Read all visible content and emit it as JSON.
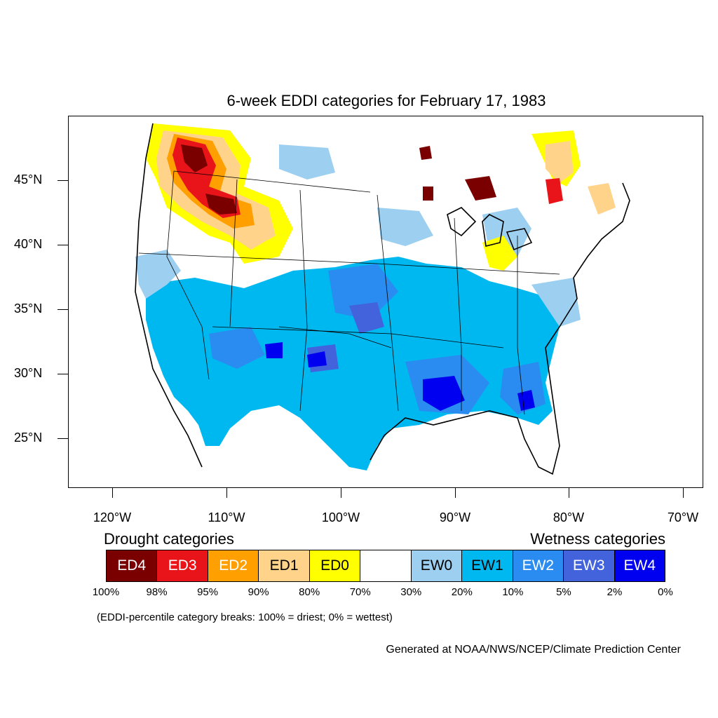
{
  "title": "6-week EDDI categories for February 17, 1983",
  "latitude_labels": [
    "45°N",
    "40°N",
    "35°N",
    "30°N",
    "25°N"
  ],
  "longitude_labels": [
    "120°W",
    "110°W",
    "100°W",
    "90°W",
    "80°W",
    "70°W"
  ],
  "legend": {
    "drought_heading": "Drought categories",
    "wetness_heading": "Wetness categories",
    "categories": [
      {
        "label": "ED4",
        "color": "#7a0000",
        "text_color": "#ffffff"
      },
      {
        "label": "ED3",
        "color": "#e8141a",
        "text_color": "#ffffff"
      },
      {
        "label": "ED2",
        "color": "#ffa000",
        "text_color": "#ffffff"
      },
      {
        "label": "ED1",
        "color": "#ffd38a",
        "text_color": "#000000"
      },
      {
        "label": "ED0",
        "color": "#ffff00",
        "text_color": "#000000"
      },
      {
        "label": "",
        "color": "#ffffff",
        "text_color": "#000000"
      },
      {
        "label": "EW0",
        "color": "#9ccff0",
        "text_color": "#000000"
      },
      {
        "label": "EW1",
        "color": "#00b8f0",
        "text_color": "#000000"
      },
      {
        "label": "EW2",
        "color": "#2a8cf0",
        "text_color": "#ffffff"
      },
      {
        "label": "EW3",
        "color": "#4363dc",
        "text_color": "#ffffff"
      },
      {
        "label": "EW4",
        "color": "#0000f0",
        "text_color": "#ffffff"
      }
    ],
    "percent_breaks": [
      "100%",
      "98%",
      "95%",
      "90%",
      "80%",
      "70%",
      "30%",
      "20%",
      "10%",
      "5%",
      "2%",
      "0%"
    ]
  },
  "breaks_note": "(EDDI-percentile category breaks: 100% = driest; 0% = wettest)",
  "credit": "Generated at NOAA/NWS/NCEP/Climate Prediction Center"
}
